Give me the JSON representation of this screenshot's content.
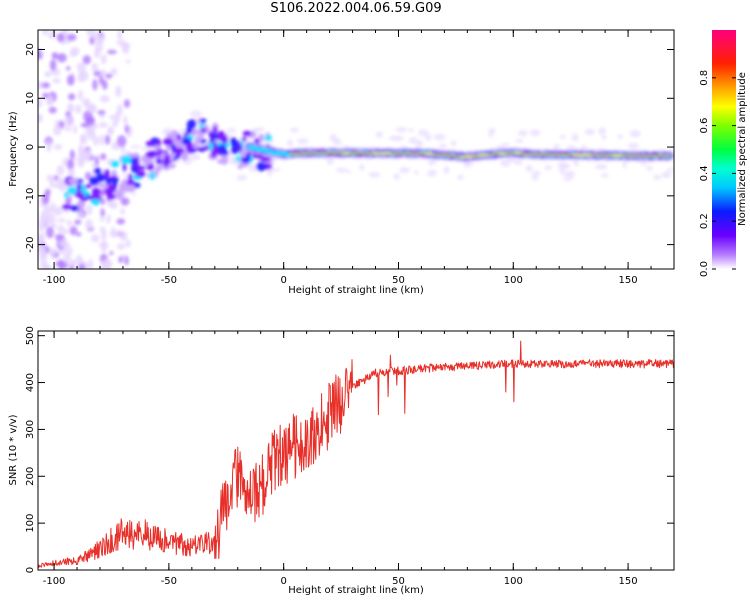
{
  "title": "S106.2022.004.06.59.G09",
  "chart_data": [
    {
      "type": "heatmap",
      "xlabel": "Height of straight line (km)",
      "ylabel": "Frequency (Hz)",
      "xlim": [
        -107,
        170
      ],
      "ylim": [
        -25,
        24
      ],
      "xticks": [
        -100,
        -50,
        0,
        50,
        100,
        150
      ],
      "yticks": [
        -20,
        -10,
        0,
        10,
        20
      ],
      "colorbar": {
        "label": "Normalized spectral amplitude",
        "range": [
          0,
          1
        ],
        "ticks": [
          "0.0",
          "0.2",
          "0.4",
          "0.6",
          "0.8"
        ]
      },
      "ridge": [
        {
          "x": -90,
          "f": -10
        },
        {
          "x": -80,
          "f": -8
        },
        {
          "x": -70,
          "f": -6
        },
        {
          "x": -60,
          "f": -3
        },
        {
          "x": -50,
          "f": -1
        },
        {
          "x": -40,
          "f": 2
        },
        {
          "x": -35,
          "f": 3
        },
        {
          "x": -30,
          "f": 1
        },
        {
          "x": -25,
          "f": -1
        },
        {
          "x": -20,
          "f": -2
        },
        {
          "x": -15,
          "f": 0
        },
        {
          "x": -5,
          "f": -1
        },
        {
          "x": 0,
          "f": -1.5
        },
        {
          "x": 10,
          "f": -1.2
        },
        {
          "x": 20,
          "f": -1.2
        },
        {
          "x": 60,
          "f": -1.3
        },
        {
          "x": 80,
          "f": -2
        },
        {
          "x": 90,
          "f": -1.5
        },
        {
          "x": 100,
          "f": -1.2
        },
        {
          "x": 110,
          "f": -1.5
        },
        {
          "x": 130,
          "f": -1.6
        },
        {
          "x": 150,
          "f": -1.8
        },
        {
          "x": 170,
          "f": -1.8
        }
      ],
      "strong_band": {
        "x_start": 3,
        "x_end": 168,
        "f": -1.5
      }
    },
    {
      "type": "line",
      "xlabel": "Height of straight line (km)",
      "ylabel": "SNR (10 * v/v)",
      "xlim": [
        -107,
        170
      ],
      "ylim": [
        0,
        510
      ],
      "xticks": [
        -100,
        -50,
        0,
        50,
        100,
        150
      ],
      "yticks": [
        0,
        100,
        200,
        300,
        400,
        500
      ],
      "series": [
        {
          "color": "#e8302a",
          "trend": [
            {
              "x": -107,
              "y": 10
            },
            {
              "x": -90,
              "y": 20
            },
            {
              "x": -80,
              "y": 45
            },
            {
              "x": -70,
              "y": 80
            },
            {
              "x": -60,
              "y": 75
            },
            {
              "x": -50,
              "y": 60
            },
            {
              "x": -40,
              "y": 50
            },
            {
              "x": -30,
              "y": 60
            },
            {
              "x": -25,
              "y": 150
            },
            {
              "x": -20,
              "y": 200
            },
            {
              "x": -15,
              "y": 150
            },
            {
              "x": -10,
              "y": 170
            },
            {
              "x": -5,
              "y": 230
            },
            {
              "x": 0,
              "y": 250
            },
            {
              "x": 10,
              "y": 280
            },
            {
              "x": 20,
              "y": 330
            },
            {
              "x": 30,
              "y": 390
            },
            {
              "x": 40,
              "y": 420
            },
            {
              "x": 60,
              "y": 430
            },
            {
              "x": 80,
              "y": 435
            },
            {
              "x": 100,
              "y": 440
            },
            {
              "x": 120,
              "y": 440
            },
            {
              "x": 150,
              "y": 440
            },
            {
              "x": 170,
              "y": 440
            }
          ]
        }
      ]
    }
  ]
}
